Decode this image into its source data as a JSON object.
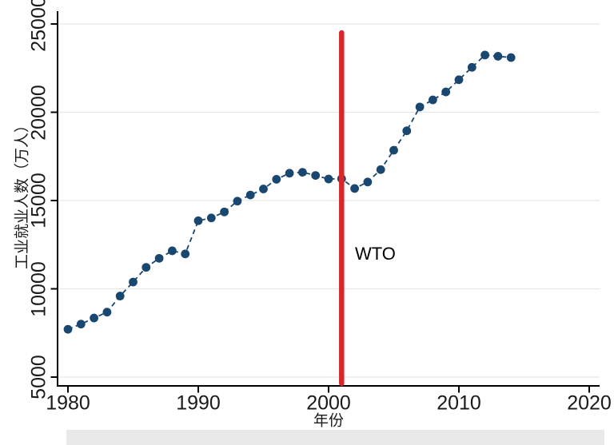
{
  "figure": {
    "background_color": "#ffffff",
    "bottom_band_color": "#e9e9e9",
    "axis_color": "#000000",
    "gridline_color": "#e7e7e7",
    "tick_label_color": "#1a1a1a"
  },
  "chart_data": {
    "type": "scatter",
    "title": "",
    "xlabel": "年份",
    "ylabel": "工业就业人数（万人）",
    "x_ticks": [
      1980,
      1990,
      2000,
      2010,
      2020
    ],
    "y_ticks": [
      5000,
      10000,
      15000,
      20000,
      25000
    ],
    "xlim": [
      1979.2,
      2020.8
    ],
    "ylim": [
      4500,
      25700
    ],
    "grid": "horizontal-only",
    "legend": "none",
    "marker_color": "#1a476f",
    "connector_style": "dashed",
    "series": [
      {
        "name": "工业就业人数",
        "x": [
          1980,
          1981,
          1982,
          1983,
          1984,
          1985,
          1986,
          1987,
          1988,
          1989,
          1990,
          1991,
          1992,
          1993,
          1994,
          1995,
          1996,
          1997,
          1998,
          1999,
          2000,
          2001,
          2002,
          2003,
          2004,
          2005,
          2006,
          2007,
          2008,
          2009,
          2010,
          2011,
          2012,
          2013,
          2014
        ],
        "y": [
          7707,
          8003,
          8346,
          8679,
          9590,
          10384,
          11216,
          11726,
          12152,
          11976,
          13856,
          14015,
          14355,
          14965,
          15312,
          15655,
          16203,
          16547,
          16600,
          16421,
          16219,
          16234,
          15682,
          16050,
          16750,
          17850,
          18950,
          20300,
          20700,
          21150,
          21842,
          22544,
          23241,
          23170,
          23099
        ]
      }
    ],
    "reference_line": {
      "x": 2001,
      "label": "WTO",
      "color": "#d9262c"
    }
  }
}
